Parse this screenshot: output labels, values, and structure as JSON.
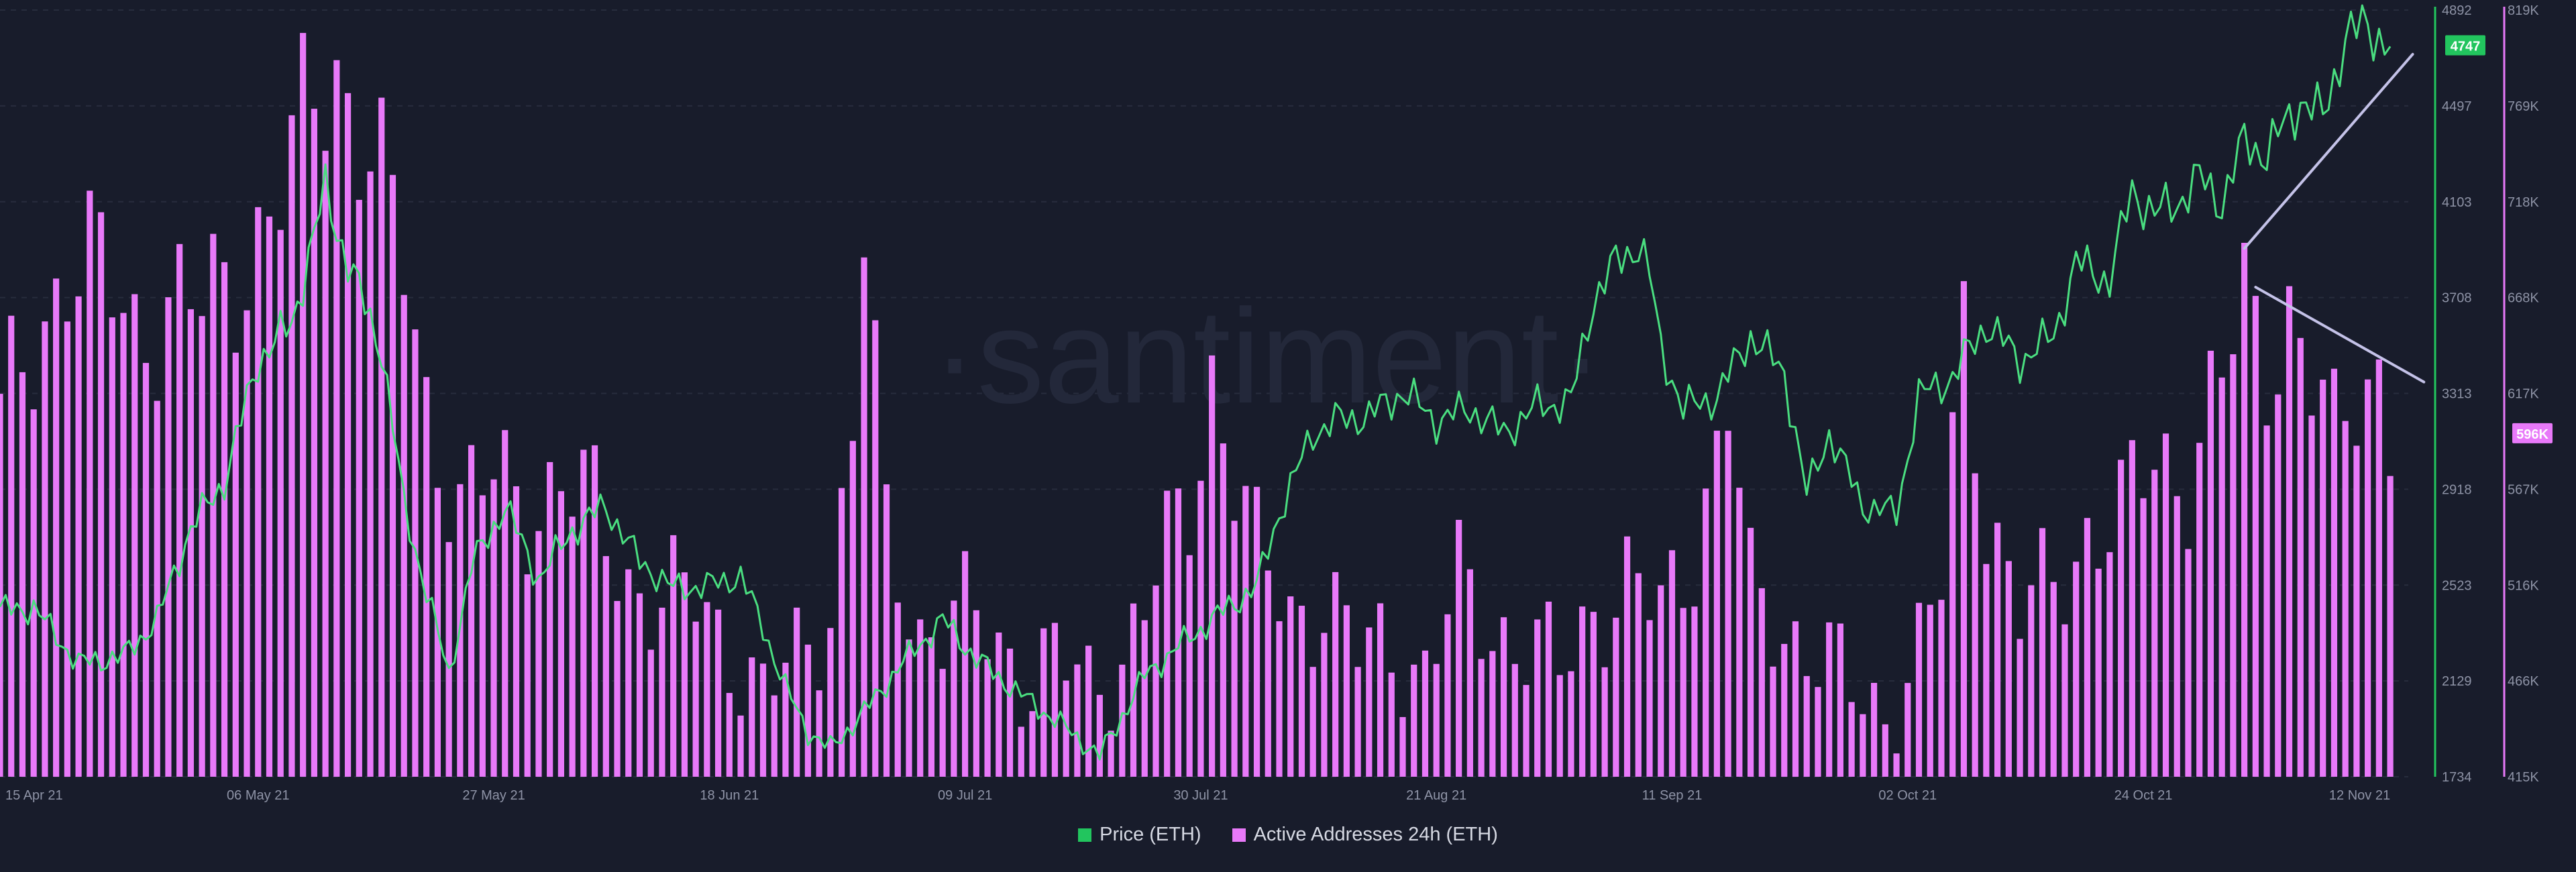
{
  "watermark": "·santiment·",
  "chart_data": {
    "type": "bar+line",
    "x_range": [
      "2021-04-13",
      "2021-11-12"
    ],
    "x_tick_labels": [
      "15 Apr 21",
      "06 May 21",
      "27 May 21",
      "18 Jun 21",
      "09 Jul 21",
      "30 Jul 21",
      "21 Aug 21",
      "11 Sep 21",
      "02 Oct 21",
      "24 Oct 21",
      "12 Nov 21"
    ],
    "price_axis": {
      "ticks": [
        "4892",
        "4497",
        "4103",
        "3708",
        "3313",
        "2918",
        "2523",
        "2129",
        "1734"
      ],
      "range": [
        1734,
        4892
      ]
    },
    "addresses_axis": {
      "ticks": [
        "819K",
        "769K",
        "718K",
        "668K",
        "617K",
        "567K",
        "516K",
        "466K",
        "415K"
      ],
      "range": [
        415000,
        819000
      ]
    },
    "current_price_label": "4747",
    "current_addresses_label": "596K",
    "colors": {
      "price": "#22c55e",
      "price_line": "#4ade80",
      "addresses": "#e879f9",
      "trendline": "#c4c2e8"
    },
    "series": [
      {
        "name": "Price (ETH)",
        "axis": "left-axis-right-side",
        "points": [
          [
            "2021-04-13",
            2420
          ],
          [
            "2021-04-16",
            2430
          ],
          [
            "2021-04-20",
            2200
          ],
          [
            "2021-04-24",
            2230
          ],
          [
            "2021-04-27",
            2380
          ],
          [
            "2021-04-30",
            2760
          ],
          [
            "2021-05-03",
            2950
          ],
          [
            "2021-05-06",
            3450
          ],
          [
            "2021-05-09",
            3600
          ],
          [
            "2021-05-12",
            4150
          ],
          [
            "2021-05-14",
            3850
          ],
          [
            "2021-05-17",
            3500
          ],
          [
            "2021-05-19",
            2850
          ],
          [
            "2021-05-21",
            2500
          ],
          [
            "2021-05-23",
            2150
          ],
          [
            "2021-05-25",
            2600
          ],
          [
            "2021-05-28",
            2850
          ],
          [
            "2021-05-31",
            2550
          ],
          [
            "2021-06-03",
            2750
          ],
          [
            "2021-06-06",
            2850
          ],
          [
            "2021-06-09",
            2620
          ],
          [
            "2021-06-12",
            2510
          ],
          [
            "2021-06-15",
            2520
          ],
          [
            "2021-06-18",
            2560
          ],
          [
            "2021-06-20",
            2350
          ],
          [
            "2021-06-22",
            2100
          ],
          [
            "2021-06-24",
            1920
          ],
          [
            "2021-06-26",
            1850
          ],
          [
            "2021-06-29",
            2000
          ],
          [
            "2021-07-02",
            2180
          ],
          [
            "2021-07-06",
            2380
          ],
          [
            "2021-07-09",
            2220
          ],
          [
            "2021-07-13",
            2070
          ],
          [
            "2021-07-16",
            1970
          ],
          [
            "2021-07-20",
            1820
          ],
          [
            "2021-07-24",
            2150
          ],
          [
            "2021-07-27",
            2270
          ],
          [
            "2021-07-30",
            2380
          ],
          [
            "2021-08-03",
            2520
          ],
          [
            "2021-08-05",
            2820
          ],
          [
            "2021-08-08",
            3150
          ],
          [
            "2021-08-10",
            3200
          ],
          [
            "2021-08-13",
            3220
          ],
          [
            "2021-08-16",
            3320
          ],
          [
            "2021-08-19",
            3200
          ],
          [
            "2021-08-22",
            3250
          ],
          [
            "2021-08-25",
            3150
          ],
          [
            "2021-08-28",
            3260
          ],
          [
            "2021-08-31",
            3280
          ],
          [
            "2021-09-02",
            3700
          ],
          [
            "2021-09-04",
            3850
          ],
          [
            "2021-09-06",
            3930
          ],
          [
            "2021-09-07",
            3800
          ],
          [
            "2021-09-08",
            3500
          ],
          [
            "2021-09-10",
            3250
          ],
          [
            "2021-09-13",
            3300
          ],
          [
            "2021-09-16",
            3550
          ],
          [
            "2021-09-19",
            3400
          ],
          [
            "2021-09-21",
            2900
          ],
          [
            "2021-09-23",
            3150
          ],
          [
            "2021-09-26",
            2850
          ],
          [
            "2021-09-29",
            2820
          ],
          [
            "2021-10-01",
            3300
          ],
          [
            "2021-10-04",
            3380
          ],
          [
            "2021-10-07",
            3600
          ],
          [
            "2021-10-10",
            3450
          ],
          [
            "2021-10-13",
            3550
          ],
          [
            "2021-10-15",
            3850
          ],
          [
            "2021-10-18",
            3780
          ],
          [
            "2021-10-20",
            4150
          ],
          [
            "2021-10-22",
            4050
          ],
          [
            "2021-10-24",
            4100
          ],
          [
            "2021-10-26",
            4200
          ],
          [
            "2021-10-28",
            4100
          ],
          [
            "2021-10-30",
            4350
          ],
          [
            "2021-11-01",
            4300
          ],
          [
            "2021-11-04",
            4520
          ],
          [
            "2021-11-06",
            4450
          ],
          [
            "2021-11-08",
            4780
          ],
          [
            "2021-11-10",
            4830
          ],
          [
            "2021-11-12",
            4740
          ]
        ]
      },
      {
        "name": "Active Addresses 24h (ETH)",
        "axis": "right",
        "points": [
          [
            "2021-04-13",
            600000
          ],
          [
            "2021-04-16",
            640000
          ],
          [
            "2021-04-19",
            690000
          ],
          [
            "2021-04-22",
            680000
          ],
          [
            "2021-04-25",
            650000
          ],
          [
            "2021-04-28",
            665000
          ],
          [
            "2021-05-01",
            660000
          ],
          [
            "2021-05-03",
            672000
          ],
          [
            "2021-05-06",
            700000
          ],
          [
            "2021-05-09",
            735000
          ],
          [
            "2021-05-11",
            775000
          ],
          [
            "2021-05-13",
            790000
          ],
          [
            "2021-05-16",
            745000
          ],
          [
            "2021-05-19",
            685000
          ],
          [
            "2021-05-21",
            610000
          ],
          [
            "2021-05-24",
            560000
          ],
          [
            "2021-05-27",
            570000
          ],
          [
            "2021-05-30",
            560000
          ],
          [
            "2021-06-02",
            570000
          ],
          [
            "2021-06-05",
            555000
          ],
          [
            "2021-06-08",
            520000
          ],
          [
            "2021-06-11",
            505000
          ],
          [
            "2021-06-14",
            510000
          ],
          [
            "2021-06-17",
            485000
          ],
          [
            "2021-06-20",
            455000
          ],
          [
            "2021-06-23",
            478000
          ],
          [
            "2021-06-26",
            505000
          ],
          [
            "2021-06-28",
            600000
          ],
          [
            "2021-06-29",
            700000
          ],
          [
            "2021-07-01",
            540000
          ],
          [
            "2021-07-04",
            492000
          ],
          [
            "2021-07-07",
            502000
          ],
          [
            "2021-07-10",
            490000
          ],
          [
            "2021-07-13",
            470000
          ],
          [
            "2021-07-16",
            478000
          ],
          [
            "2021-07-19",
            460000
          ],
          [
            "2021-07-22",
            480000
          ],
          [
            "2021-07-25",
            520000
          ],
          [
            "2021-07-28",
            555000
          ],
          [
            "2021-07-30",
            628000
          ],
          [
            "2021-08-03",
            530000
          ],
          [
            "2021-08-06",
            500000
          ],
          [
            "2021-08-09",
            510000
          ],
          [
            "2021-08-12",
            480000
          ],
          [
            "2021-08-15",
            485000
          ],
          [
            "2021-08-18",
            470000
          ],
          [
            "2021-08-21",
            515000
          ],
          [
            "2021-08-24",
            495000
          ],
          [
            "2021-08-27",
            485000
          ],
          [
            "2021-08-30",
            470000
          ],
          [
            "2021-09-02",
            505000
          ],
          [
            "2021-09-05",
            515000
          ],
          [
            "2021-09-08",
            500000
          ],
          [
            "2021-09-11",
            540000
          ],
          [
            "2021-09-13",
            585000
          ],
          [
            "2021-09-14",
            612000
          ],
          [
            "2021-09-16",
            510000
          ],
          [
            "2021-09-19",
            495000
          ],
          [
            "2021-09-22",
            480000
          ],
          [
            "2021-09-25",
            460000
          ],
          [
            "2021-09-28",
            450000
          ],
          [
            "2021-10-01",
            480000
          ],
          [
            "2021-10-03",
            515000
          ],
          [
            "2021-10-05",
            655000
          ],
          [
            "2021-10-07",
            560000
          ],
          [
            "2021-10-10",
            500000
          ],
          [
            "2021-10-13",
            515000
          ],
          [
            "2021-10-16",
            545000
          ],
          [
            "2021-10-19",
            550000
          ],
          [
            "2021-10-22",
            585000
          ],
          [
            "2021-10-25",
            575000
          ],
          [
            "2021-10-28",
            620000
          ],
          [
            "2021-10-30",
            668000
          ],
          [
            "2021-11-01",
            640000
          ],
          [
            "2021-11-03",
            658000
          ],
          [
            "2021-11-05",
            620000
          ],
          [
            "2021-11-07",
            590000
          ],
          [
            "2021-11-09",
            625000
          ],
          [
            "2021-11-11",
            630000
          ],
          [
            "2021-11-12",
            600000
          ]
        ]
      }
    ],
    "trendlines": [
      {
        "series": "Price (ETH)",
        "from": [
          "2021-10-30",
          3910
        ],
        "to": [
          "2021-11-14",
          4710
        ]
      },
      {
        "series": "Active Addresses 24h (ETH)",
        "from": [
          "2021-10-31",
          673000
        ],
        "to": [
          "2021-11-15",
          623000
        ]
      }
    ],
    "grid": true,
    "legend_position": "bottom-center"
  },
  "legend": {
    "price_label": "Price (ETH)",
    "addresses_label": "Active Addresses 24h (ETH)"
  }
}
